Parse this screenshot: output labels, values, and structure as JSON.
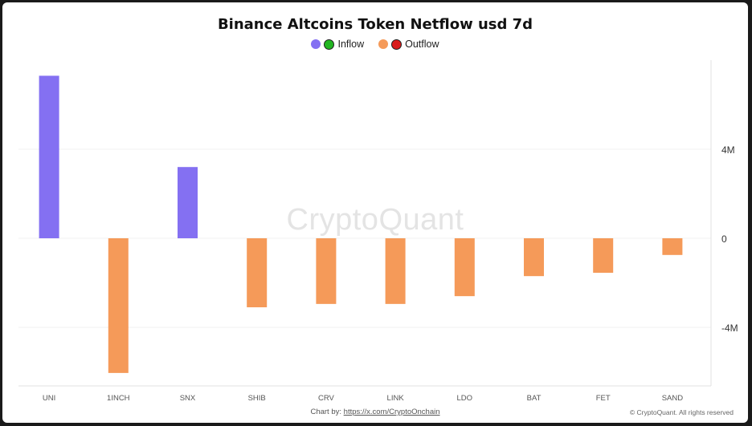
{
  "chart_data": {
    "type": "bar",
    "title": "Binance Altcoins Token Netflow usd 7d",
    "categories": [
      "UNI",
      "1INCH",
      "SNX",
      "SHIB",
      "CRV",
      "LINK",
      "LDO",
      "BAT",
      "FET",
      "SAND"
    ],
    "values": [
      7300000,
      -6050000,
      3200000,
      -3100000,
      -2950000,
      -2950000,
      -2600000,
      -1700000,
      -1550000,
      -750000
    ],
    "ylim": [
      -6800000,
      8000000
    ],
    "yticks": [
      4000000,
      0,
      -4000000
    ],
    "ytick_labels": [
      "4M",
      "0",
      "-4M"
    ],
    "xlabel": "",
    "ylabel": "",
    "grid": true,
    "legend": {
      "placement": "top-center",
      "entries": [
        {
          "label": "Inflow",
          "colors": [
            "#8470f2",
            "#22b522"
          ]
        },
        {
          "label": "Outflow",
          "colors": [
            "#f59a59",
            "#d91c1c"
          ]
        }
      ]
    },
    "colors": {
      "inflow": "#8470f2",
      "outflow": "#f59a59"
    }
  },
  "watermark": "CryptoQuant",
  "footer": {
    "credit_prefix": "Chart by:",
    "credit_link": "https://x.com/CryptoOnchain",
    "copyright": "© CryptoQuant. All rights reserved"
  }
}
